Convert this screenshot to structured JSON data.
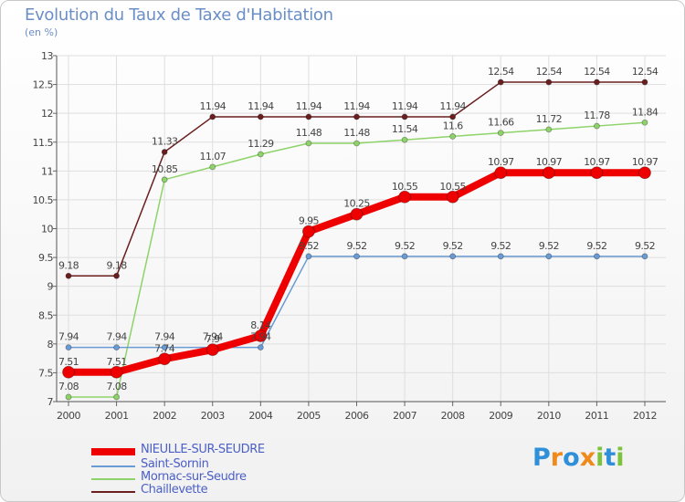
{
  "chart_data": {
    "type": "line",
    "title": "Evolution du Taux de Taxe d'Habitation",
    "ylabel": "(en %)",
    "xlabel": "",
    "ylim": [
      7,
      13
    ],
    "yticks": [
      "7",
      "7.5",
      "8",
      "8.5",
      "9",
      "9.5",
      "10",
      "10.5",
      "11",
      "11.5",
      "12",
      "12.5",
      "13"
    ],
    "categories": [
      "2000",
      "2001",
      "2002",
      "2003",
      "2004",
      "2005",
      "2006",
      "2007",
      "2008",
      "2009",
      "2010",
      "2011",
      "2012"
    ],
    "series": [
      {
        "name": "Chaillevette",
        "color": "#6b1e1e",
        "values": [
          9.18,
          9.18,
          11.33,
          11.94,
          11.94,
          11.94,
          11.94,
          11.94,
          11.94,
          12.54,
          12.54,
          12.54,
          12.54
        ],
        "labels": [
          "9.18",
          "9.18",
          "11.33",
          "11.94",
          "11.94",
          "11.94",
          "11.94",
          "11.94",
          "11.94",
          "12.54",
          "12.54",
          "12.54",
          "12.54"
        ]
      },
      {
        "name": "Mornac-sur-Seudre",
        "color": "#8ed36a",
        "values": [
          7.08,
          7.08,
          10.85,
          11.07,
          11.29,
          11.48,
          11.48,
          11.54,
          11.6,
          11.66,
          11.72,
          11.78,
          11.84
        ],
        "labels": [
          "7.08",
          "7.08",
          "10.85",
          "11.07",
          "11.29",
          "11.48",
          "11.48",
          "11.54",
          "11.6",
          "11.66",
          "11.72",
          "11.78",
          "11.84"
        ]
      },
      {
        "name": "Saint-Sornin",
        "color": "#6a9bd4",
        "values": [
          7.94,
          7.94,
          7.94,
          7.94,
          7.94,
          9.52,
          9.52,
          9.52,
          9.52,
          9.52,
          9.52,
          9.52,
          9.52
        ],
        "labels": [
          "7.94",
          "7.94",
          "7.94",
          "7.94",
          "7.94",
          "9.52",
          "9.52",
          "9.52",
          "9.52",
          "9.52",
          "9.52",
          "9.52",
          "9.52"
        ]
      },
      {
        "name": "NIEULLE-SUR-SEUDRE",
        "color": "#ee0000",
        "values": [
          7.51,
          7.51,
          7.74,
          7.9,
          8.14,
          9.95,
          10.25,
          10.55,
          10.55,
          10.97,
          10.97,
          10.97,
          10.97
        ],
        "labels": [
          "7.51",
          "7.51",
          "7.74",
          "7.9",
          "8.14",
          "9.95",
          "10.25",
          "10.55",
          "10.55",
          "10.97",
          "10.97",
          "10.97",
          "10.97"
        ]
      }
    ]
  },
  "legend": [
    {
      "label": "NIEULLE-SUR-SEUDRE",
      "color": "#ee0000"
    },
    {
      "label": "Saint-Sornin",
      "color": "#6a9bd4"
    },
    {
      "label": "Mornac-sur-Seudre",
      "color": "#8ed36a"
    },
    {
      "label": "Chaillevette",
      "color": "#6b1e1e"
    }
  ],
  "logo": {
    "letters": [
      "P",
      "r",
      "o",
      "x",
      "i",
      "t",
      "i"
    ],
    "colors": [
      "#2f8fd8",
      "#f08a1c",
      "#2f8fd8",
      "#f08a1c",
      "#7cc23a",
      "#2f8fd8",
      "#7cc23a"
    ]
  }
}
